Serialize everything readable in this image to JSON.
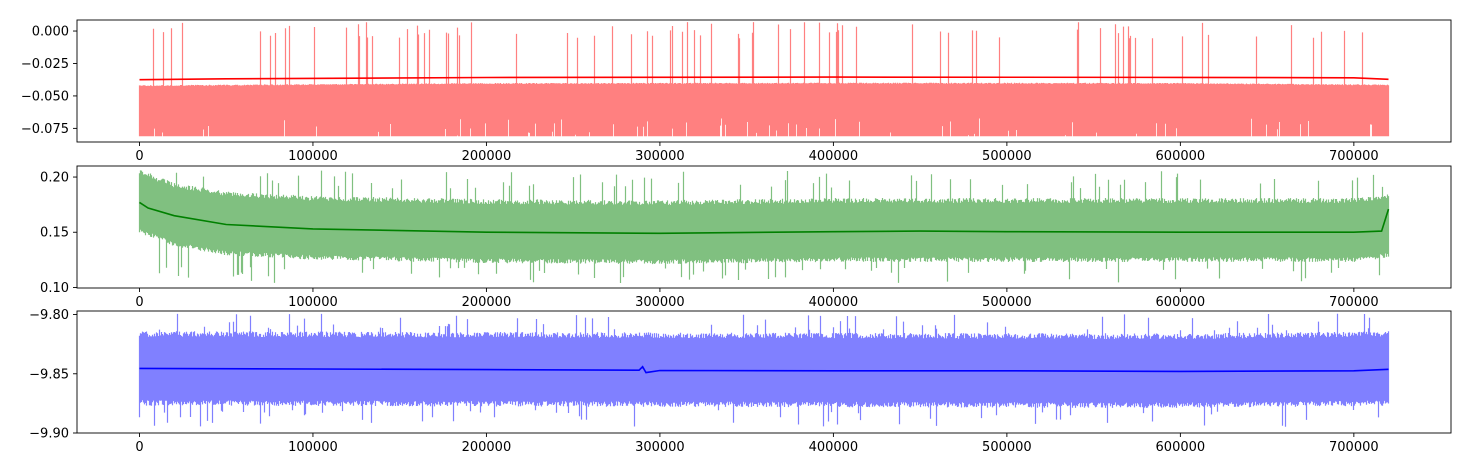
{
  "chart_data": [
    {
      "type": "line",
      "xlim": [
        -36000,
        756000
      ],
      "ylim": [
        -0.0855,
        0.0085
      ],
      "x_ticks": [
        0,
        100000,
        200000,
        300000,
        400000,
        500000,
        600000,
        700000
      ],
      "x_tick_labels": [
        "0",
        "100000",
        "200000",
        "300000",
        "400000",
        "500000",
        "600000",
        "700000"
      ],
      "y_ticks": [
        0.0,
        -0.025,
        -0.05,
        -0.075
      ],
      "y_tick_labels": [
        "0.000",
        "−0.025",
        "−0.050",
        "−0.075"
      ],
      "x_range": [
        0,
        720000
      ],
      "series": [
        {
          "role": "raw",
          "color": "#ff8080",
          "center": [
            [
              0,
              -0.0375
            ],
            [
              200000,
              -0.0358
            ],
            [
              400000,
              -0.0355
            ],
            [
              600000,
              -0.0357
            ],
            [
              720000,
              -0.037
            ]
          ],
          "band_low": -0.071,
          "band_high": -0.005,
          "spike_min": -0.081,
          "spike_max": 0.007
        },
        {
          "role": "smoothed",
          "color": "#ff0000",
          "values": [
            [
              0,
              -0.0375
            ],
            [
              50000,
              -0.0368
            ],
            [
              200000,
              -0.0358
            ],
            [
              400000,
              -0.0355
            ],
            [
              600000,
              -0.0357
            ],
            [
              700000,
              -0.036
            ],
            [
              720000,
              -0.0372
            ]
          ]
        }
      ]
    },
    {
      "type": "line",
      "xlim": [
        -36000,
        756000
      ],
      "ylim": [
        0.0995,
        0.21
      ],
      "x_ticks": [
        0,
        100000,
        200000,
        300000,
        400000,
        500000,
        600000,
        700000
      ],
      "x_tick_labels": [
        "0",
        "100000",
        "200000",
        "300000",
        "400000",
        "500000",
        "600000",
        "700000"
      ],
      "y_ticks": [
        0.2,
        0.15,
        0.1
      ],
      "y_tick_labels": [
        "0.20",
        "0.15",
        "0.10"
      ],
      "x_range": [
        0,
        720000
      ],
      "series": [
        {
          "role": "raw",
          "color": "#80c080",
          "center": [
            [
              0,
              0.177
            ],
            [
              20000,
              0.165
            ],
            [
              50000,
              0.157
            ],
            [
              100000,
              0.153
            ],
            [
              200000,
              0.15
            ],
            [
              300000,
              0.149
            ],
            [
              400000,
              0.151
            ],
            [
              500000,
              0.151
            ],
            [
              600000,
              0.151
            ],
            [
              700000,
              0.151
            ],
            [
              720000,
              0.155
            ]
          ],
          "band_low": -0.028,
          "band_high": 0.03,
          "spike_min": 0.104,
          "spike_max": 0.206
        },
        {
          "role": "smoothed",
          "color": "#008000",
          "values": [
            [
              0,
              0.177
            ],
            [
              5000,
              0.172
            ],
            [
              20000,
              0.165
            ],
            [
              50000,
              0.157
            ],
            [
              100000,
              0.153
            ],
            [
              200000,
              0.15
            ],
            [
              300000,
              0.149
            ],
            [
              400000,
              0.1505
            ],
            [
              450000,
              0.151
            ],
            [
              500000,
              0.1505
            ],
            [
              600000,
              0.15
            ],
            [
              700000,
              0.15
            ],
            [
              716000,
              0.151
            ],
            [
              720000,
              0.171
            ]
          ]
        }
      ]
    },
    {
      "type": "line",
      "xlim": [
        -36000,
        756000
      ],
      "ylim": [
        -9.9,
        -9.797
      ],
      "x_ticks": [
        0,
        100000,
        200000,
        300000,
        400000,
        500000,
        600000,
        700000
      ],
      "x_tick_labels": [
        "0",
        "100000",
        "200000",
        "300000",
        "400000",
        "500000",
        "600000",
        "700000"
      ],
      "y_ticks": [
        -9.8,
        -9.85,
        -9.9
      ],
      "y_tick_labels": [
        "−9.80",
        "−9.85",
        "−9.90"
      ],
      "x_range": [
        0,
        720000
      ],
      "series": [
        {
          "role": "raw",
          "color": "#8080ff",
          "center": [
            [
              0,
              -9.846
            ],
            [
              300000,
              -9.847
            ],
            [
              600000,
              -9.848
            ],
            [
              720000,
              -9.846
            ]
          ],
          "band_low": -0.031,
          "band_high": 0.032,
          "spike_min": -9.895,
          "spike_max": -9.799
        },
        {
          "role": "smoothed",
          "color": "#0000ff",
          "values": [
            [
              0,
              -9.8455
            ],
            [
              100000,
              -9.846
            ],
            [
              200000,
              -9.8465
            ],
            [
              288000,
              -9.847
            ],
            [
              290000,
              -9.844
            ],
            [
              292000,
              -9.849
            ],
            [
              300000,
              -9.8472
            ],
            [
              400000,
              -9.8475
            ],
            [
              500000,
              -9.8475
            ],
            [
              600000,
              -9.848
            ],
            [
              700000,
              -9.8475
            ],
            [
              720000,
              -9.8462
            ]
          ]
        }
      ]
    }
  ]
}
